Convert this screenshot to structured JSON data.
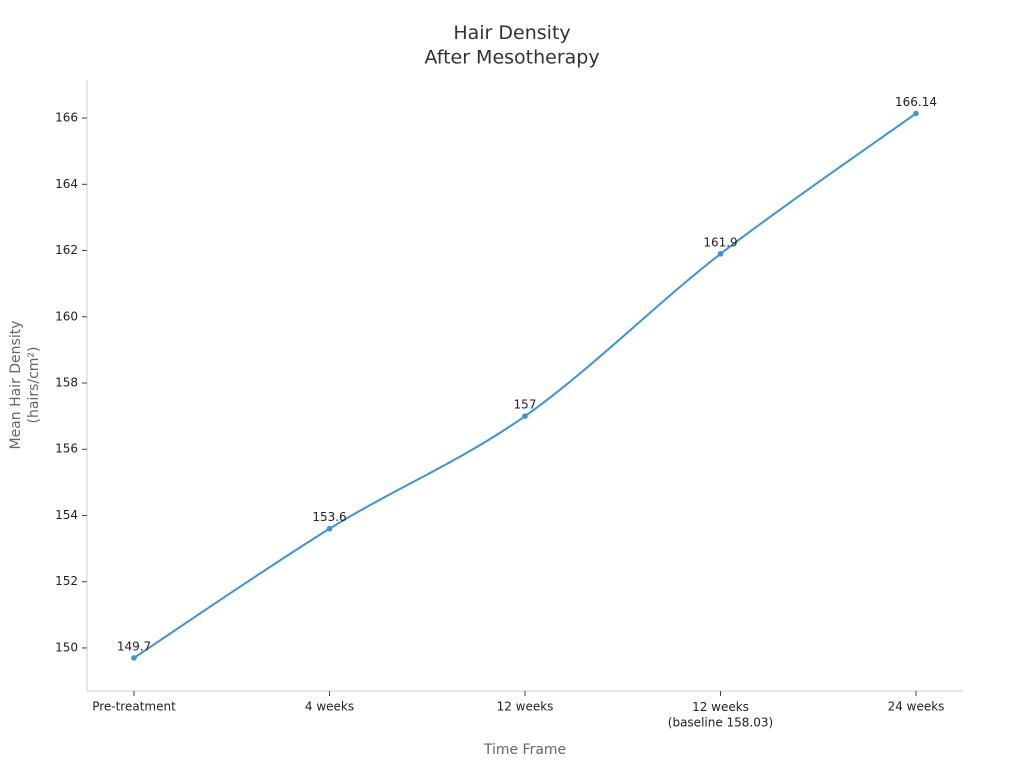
{
  "chart_data": {
    "type": "line",
    "title": "Hair Density\nAfter Mesotherapy",
    "x_label": "Time Frame",
    "y_label": "Mean Hair Density\n(hairs/cm²)",
    "categories": [
      "Pre-treatment",
      "4 weeks",
      "12 weeks",
      "12 weeks\n(baseline 158.03)",
      "24 weeks"
    ],
    "series": [
      {
        "name": "Mean Hair Density",
        "color": "#3b94d9",
        "values": [
          149.7,
          153.6,
          157,
          161.9,
          166.14
        ]
      }
    ],
    "ylim": [
      148.7,
      167.15
    ],
    "yticks": [
      150,
      152,
      154,
      156,
      158,
      160,
      162,
      164,
      166
    ],
    "grid": false
  }
}
